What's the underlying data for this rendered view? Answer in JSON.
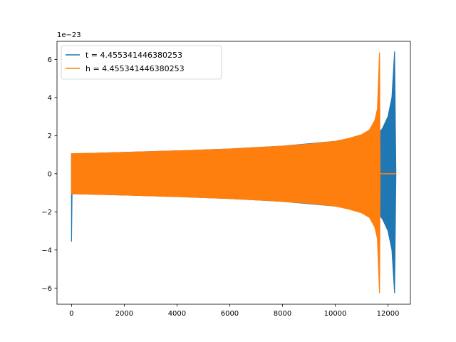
{
  "chart_data": {
    "type": "line",
    "title": "",
    "xlabel": "",
    "ylabel": "",
    "y_offset_text": "1e−23",
    "xlim": [
      -550,
      12850
    ],
    "ylim": [
      -6.85,
      6.95
    ],
    "x_ticks": [
      0,
      2000,
      4000,
      6000,
      8000,
      10000,
      12000
    ],
    "x_tick_labels": [
      "0",
      "2000",
      "4000",
      "6000",
      "8000",
      "10000",
      "12000"
    ],
    "y_ticks": [
      -6,
      -4,
      -2,
      0,
      2,
      4,
      6
    ],
    "y_tick_labels": [
      "−6",
      "−4",
      "−2",
      "0",
      "2",
      "4",
      "6"
    ],
    "grid": false,
    "legend_position": "top-left",
    "series": [
      {
        "name": "t = 4.455341446380253",
        "color": "#1f77b4",
        "x": [
          0,
          20,
          1000,
          2000,
          4000,
          6000,
          8000,
          10000,
          11000,
          11500,
          11700,
          11800,
          12000,
          12150,
          12250,
          12300
        ],
        "upper": [
          1.05,
          1.05,
          1.08,
          1.12,
          1.2,
          1.3,
          1.45,
          1.7,
          1.9,
          2.05,
          2.2,
          2.4,
          3.0,
          4.0,
          6.4,
          0.0
        ],
        "lower": [
          -3.55,
          -1.05,
          -1.08,
          -1.12,
          -1.2,
          -1.3,
          -1.45,
          -1.7,
          -1.9,
          -2.05,
          -2.2,
          -2.4,
          -3.0,
          -4.0,
          -6.25,
          0.0
        ]
      },
      {
        "name": "h = 4.455341446380253",
        "color": "#ff7f0e",
        "x": [
          0,
          1000,
          2000,
          4000,
          6000,
          8000,
          9000,
          10000,
          10500,
          11000,
          11300,
          11500,
          11600,
          11680,
          11700,
          12300
        ],
        "upper": [
          1.05,
          1.08,
          1.12,
          1.2,
          1.3,
          1.45,
          1.55,
          1.7,
          1.85,
          2.05,
          2.3,
          2.8,
          3.4,
          6.35,
          0.0,
          0.0
        ],
        "lower": [
          -1.05,
          -1.08,
          -1.12,
          -1.2,
          -1.3,
          -1.45,
          -1.55,
          -1.7,
          -1.85,
          -2.05,
          -2.3,
          -2.8,
          -3.4,
          -6.25,
          0.0,
          0.0
        ]
      }
    ]
  }
}
